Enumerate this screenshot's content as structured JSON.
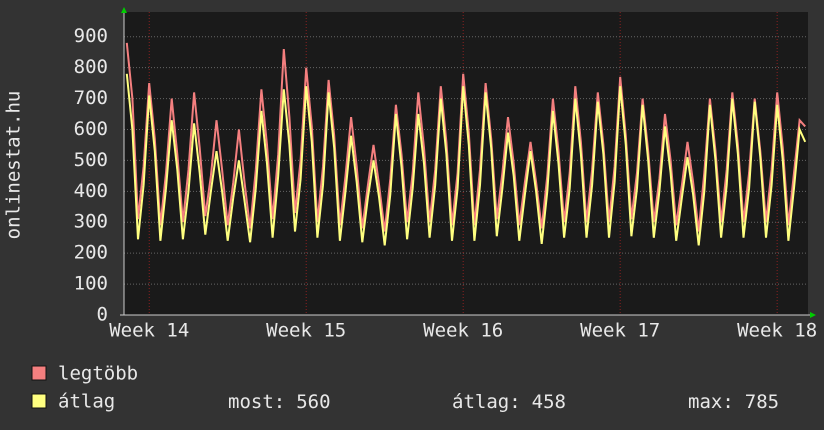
{
  "chart_data": {
    "type": "line",
    "y_label": "onlinestat.hu",
    "categories": [
      null,
      null,
      null,
      null,
      "Week 14",
      null,
      null,
      null,
      null,
      null,
      null,
      null,
      null,
      null,
      null,
      null,
      null,
      null,
      null,
      null,
      null,
      null,
      null,
      null,
      null,
      null,
      null,
      null,
      null,
      null,
      null,
      null,
      "Week 15",
      null,
      null,
      null,
      null,
      null,
      null,
      null,
      null,
      null,
      null,
      null,
      null,
      null,
      null,
      null,
      null,
      null,
      null,
      null,
      null,
      null,
      null,
      null,
      null,
      null,
      null,
      null,
      "Week 16",
      null,
      null,
      null,
      null,
      null,
      null,
      null,
      null,
      null,
      null,
      null,
      null,
      null,
      null,
      null,
      null,
      null,
      null,
      null,
      null,
      null,
      null,
      null,
      null,
      null,
      null,
      null,
      "Week 17",
      null,
      null,
      null,
      null,
      null,
      null,
      null,
      null,
      null,
      null,
      null,
      null,
      null,
      null,
      null,
      null,
      null,
      null,
      null,
      null,
      null,
      null,
      null,
      null,
      null,
      null,
      null,
      "Week 18",
      null,
      null,
      null,
      null,
      null
    ],
    "series": [
      {
        "name": "legtöbb",
        "color": "#f47f7f",
        "values": [
          880,
          700,
          310,
          480,
          750,
          570,
          290,
          460,
          700,
          520,
          300,
          470,
          720,
          540,
          320,
          450,
          630,
          470,
          290,
          430,
          600,
          430,
          280,
          470,
          730,
          550,
          310,
          520,
          860,
          640,
          330,
          500,
          800,
          610,
          300,
          480,
          760,
          580,
          290,
          450,
          640,
          480,
          280,
          420,
          550,
          420,
          270,
          440,
          680,
          520,
          300,
          460,
          720,
          540,
          300,
          470,
          740,
          560,
          290,
          460,
          780,
          590,
          290,
          470,
          750,
          570,
          310,
          460,
          640,
          490,
          290,
          430,
          560,
          430,
          280,
          450,
          700,
          530,
          300,
          460,
          740,
          560,
          300,
          470,
          720,
          550,
          300,
          480,
          770,
          580,
          310,
          460,
          700,
          530,
          300,
          440,
          650,
          500,
          290,
          420,
          560,
          430,
          270,
          460,
          700,
          530,
          300,
          470,
          720,
          550,
          300,
          460,
          700,
          530,
          300,
          470,
          720,
          540,
          290,
          460,
          630,
          610
        ]
      },
      {
        "name": "átlag",
        "color": "#ffff80",
        "values": [
          780,
          600,
          245,
          420,
          710,
          530,
          240,
          410,
          630,
          470,
          245,
          400,
          620,
          460,
          260,
          400,
          530,
          400,
          240,
          380,
          500,
          370,
          235,
          410,
          660,
          490,
          250,
          450,
          730,
          550,
          270,
          440,
          740,
          560,
          250,
          420,
          720,
          540,
          240,
          400,
          580,
          430,
          235,
          380,
          500,
          380,
          225,
          390,
          650,
          480,
          245,
          410,
          650,
          490,
          250,
          420,
          700,
          520,
          240,
          410,
          740,
          550,
          240,
          420,
          720,
          540,
          255,
          410,
          590,
          450,
          240,
          390,
          530,
          400,
          230,
          400,
          660,
          490,
          250,
          410,
          700,
          520,
          250,
          420,
          690,
          520,
          250,
          430,
          740,
          550,
          255,
          410,
          680,
          500,
          250,
          400,
          610,
          460,
          240,
          380,
          510,
          390,
          225,
          400,
          680,
          500,
          250,
          420,
          700,
          520,
          250,
          410,
          690,
          510,
          250,
          420,
          680,
          500,
          240,
          410,
          600,
          560
        ]
      }
    ],
    "stats": [
      {
        "label": "most:",
        "value": 560
      },
      {
        "label": "átlag:",
        "value": 458
      },
      {
        "label": "max:",
        "value": 785
      }
    ],
    "ylim": [
      0,
      980
    ],
    "yticks": [
      0,
      100,
      200,
      300,
      400,
      500,
      600,
      700,
      800,
      900
    ],
    "grid": true
  }
}
